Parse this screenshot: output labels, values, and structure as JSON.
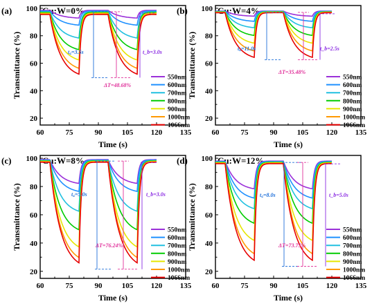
{
  "chart_data": [
    {
      "type": "line",
      "label": "(a)",
      "title": "Cu:W=0%",
      "xlabel": "Time (s)",
      "ylabel": "Transmittance (%)",
      "xlim": [
        60,
        135
      ],
      "ylim": [
        15,
        102
      ],
      "xticks": [
        60,
        75,
        90,
        105,
        120,
        135
      ],
      "yticks": [
        20,
        40,
        60,
        80,
        100
      ],
      "series_names": [
        "550nm",
        "600nm",
        "700nm",
        "800nm",
        "900nm",
        "1000nm",
        "1066nm"
      ],
      "colors": [
        "#9b30d9",
        "#1e90ff",
        "#20c0e0",
        "#00cc00",
        "#e6e600",
        "#ff9900",
        "#e60000"
      ],
      "bleached": [
        98.5,
        98.0,
        97.5,
        97.0,
        96.5,
        96.0,
        95.5
      ],
      "colored": [
        92.5,
        87.0,
        77.0,
        68.0,
        60.0,
        53.5,
        49.0
      ],
      "annotations": {
        "tc": "t꜀=3.5s",
        "tb": "t_b=3.0s",
        "delta": "ΔT=48.68%"
      }
    },
    {
      "type": "line",
      "label": "(b)",
      "title": "Cu:W=4%",
      "xlabel": "Time (s)",
      "ylabel": "Transmittance (%)",
      "xlim": [
        60,
        135
      ],
      "ylim": [
        15,
        102
      ],
      "xticks": [
        60,
        75,
        90,
        105,
        120,
        135
      ],
      "yticks": [
        20,
        40,
        60,
        80,
        100
      ],
      "series_names": [
        "550nm",
        "600nm",
        "700nm",
        "800nm",
        "900nm",
        "1000nm",
        "1066nm"
      ],
      "colors": [
        "#9b30d9",
        "#1e90ff",
        "#20c0e0",
        "#00cc00",
        "#e6e600",
        "#ff9900",
        "#e60000"
      ],
      "bleached": [
        98.0,
        97.8,
        97.6,
        97.4,
        97.2,
        97.0,
        96.8
      ],
      "colored": [
        94.0,
        90.0,
        85.0,
        79.0,
        73.0,
        67.0,
        62.0
      ],
      "annotations": {
        "tc": "t꜀=11.0s",
        "tb": "t_b=2.5s",
        "delta": "ΔT=35.48%"
      }
    },
    {
      "type": "line",
      "label": "(c)",
      "title": "Cu:W=8%",
      "xlabel": "Time (s)",
      "ylabel": "Transmittance (%)",
      "xlim": [
        60,
        135
      ],
      "ylim": [
        15,
        102
      ],
      "xticks": [
        60,
        75,
        90,
        105,
        120,
        135
      ],
      "yticks": [
        20,
        40,
        60,
        80,
        100
      ],
      "series_names": [
        "550nm",
        "600nm",
        "700nm",
        "800nm",
        "900nm",
        "1000nm",
        "1066nm"
      ],
      "colors": [
        "#9b30d9",
        "#1e90ff",
        "#20c0e0",
        "#00cc00",
        "#e6e600",
        "#ff9900",
        "#e60000"
      ],
      "bleached": [
        99.0,
        98.7,
        98.4,
        98.1,
        97.8,
        97.5,
        97.2
      ],
      "colored": [
        81.0,
        75.0,
        60.0,
        46.0,
        33.0,
        25.0,
        21.0
      ],
      "annotations": {
        "tc": "t꜀=5.0s",
        "tb": "t_b=3.0s",
        "delta": "ΔT=76.24%"
      }
    },
    {
      "type": "line",
      "label": "(d)",
      "title": "Cu:W=12%",
      "xlabel": "Time (s)",
      "ylabel": "Transmittance (%)",
      "xlim": [
        60,
        135
      ],
      "ylim": [
        15,
        102
      ],
      "xticks": [
        60,
        75,
        90,
        105,
        120,
        135
      ],
      "yticks": [
        20,
        40,
        60,
        80,
        100
      ],
      "series_names": [
        "550nm",
        "600nm",
        "700nm",
        "800nm",
        "900nm",
        "1000nm",
        "1066nm"
      ],
      "colors": [
        "#9b30d9",
        "#1e90ff",
        "#20c0e0",
        "#00cc00",
        "#e6e600",
        "#ff9900",
        "#e60000"
      ],
      "bleached": [
        98.0,
        97.7,
        97.4,
        97.1,
        96.8,
        96.5,
        96.2
      ],
      "colored": [
        77.0,
        70.0,
        62.0,
        51.0,
        38.0,
        28.0,
        23.0
      ],
      "annotations": {
        "tc": "t꜀=8.0s",
        "tb": "t_b=5.0s",
        "delta": "ΔT=73.75%"
      }
    }
  ]
}
